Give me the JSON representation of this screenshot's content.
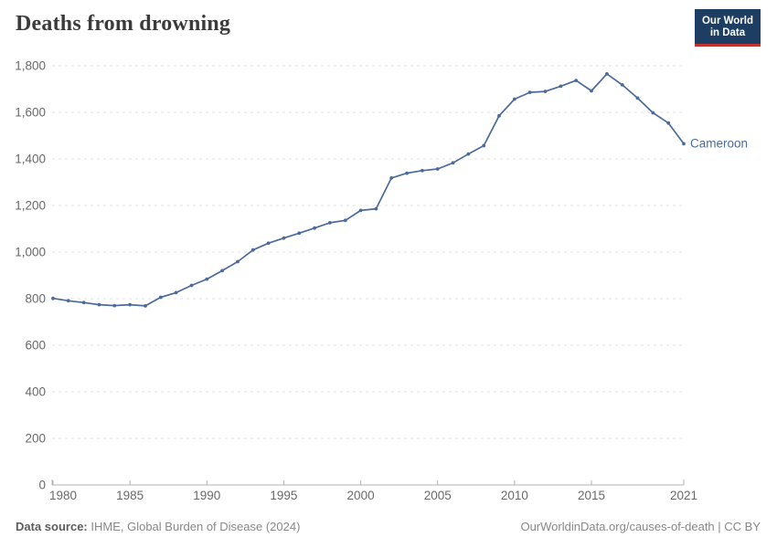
{
  "header": {
    "title": "Deaths from drowning",
    "logo": {
      "line1": "Our World",
      "line2": "in Data",
      "bg_color": "#1d3d63",
      "accent_color": "#c0342b"
    }
  },
  "chart_data": {
    "type": "line",
    "title": "Deaths from drowning",
    "entity_label": "Cameroon",
    "line_color": "#4c6a9c",
    "grid": "horizontal-dashed",
    "legend_position": "end-of-line-label",
    "x": [
      1980,
      1981,
      1982,
      1983,
      1984,
      1985,
      1986,
      1987,
      1988,
      1989,
      1990,
      1991,
      1992,
      1993,
      1994,
      1995,
      1996,
      1997,
      1998,
      1999,
      2000,
      2001,
      2002,
      2003,
      2004,
      2005,
      2006,
      2007,
      2008,
      2009,
      2010,
      2011,
      2012,
      2013,
      2014,
      2015,
      2016,
      2017,
      2018,
      2019,
      2020,
      2021
    ],
    "series": [
      {
        "name": "Cameroon",
        "values": [
          801,
          791,
          783,
          774,
          770,
          774,
          769,
          806,
          826,
          857,
          884,
          920,
          959,
          1009,
          1038,
          1060,
          1081,
          1103,
          1126,
          1136,
          1179,
          1186,
          1318,
          1339,
          1350,
          1357,
          1383,
          1421,
          1457,
          1585,
          1657,
          1686,
          1690,
          1712,
          1737,
          1692,
          1765,
          1718,
          1661,
          1598,
          1554,
          1465
        ]
      }
    ],
    "ylim": [
      0,
      1800
    ],
    "yticks": [
      0,
      200,
      400,
      600,
      800,
      1000,
      1200,
      1400,
      1600,
      1800
    ],
    "xticks": [
      1980,
      1985,
      1990,
      1995,
      2000,
      2005,
      2010,
      2015,
      2021
    ],
    "xlabel": "",
    "ylabel": "",
    "colors": {
      "grid": "#e0e0e0",
      "axis": "#b3b3b3",
      "tick_text": "#696969"
    }
  },
  "footer": {
    "source_label": "Data source:",
    "source_value": "IHME, Global Burden of Disease (2024)",
    "link_text": "OurWorldinData.org/causes-of-death | CC BY"
  }
}
